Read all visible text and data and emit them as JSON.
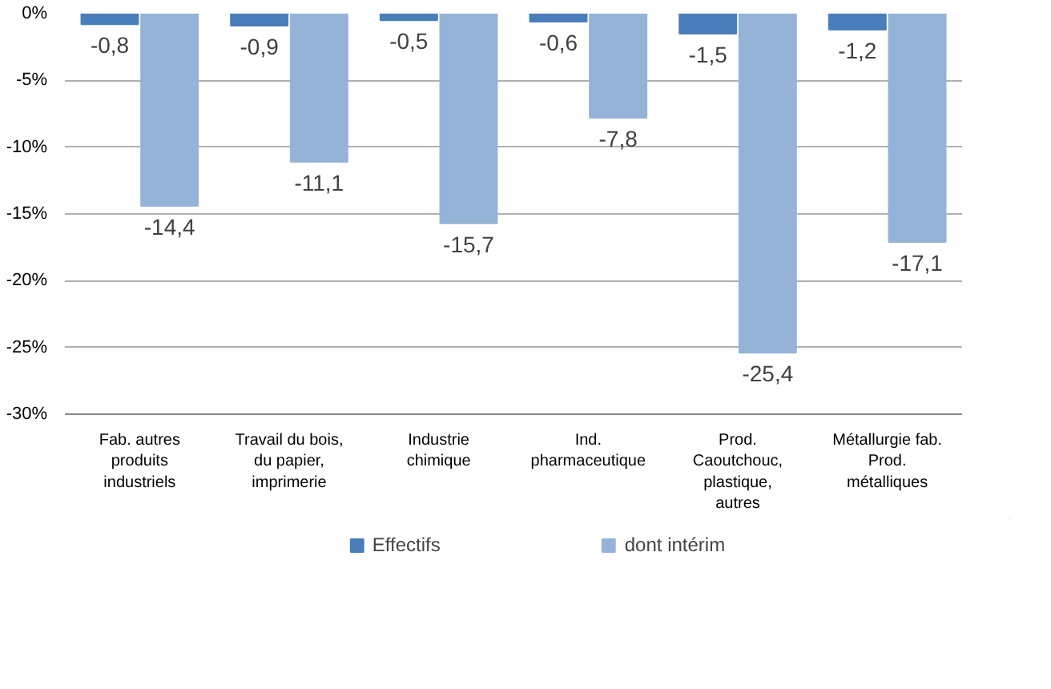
{
  "chart_data": {
    "type": "bar",
    "categories": [
      "Fab. autres produits industriels",
      "Travail du bois, du papier, imprimerie",
      "Industrie chimique",
      "Ind. pharmaceutique",
      "Prod. Caoutchouc, plastique, autres",
      "Métallurgie fab. Prod. métalliques"
    ],
    "series": [
      {
        "name": "Effectifs",
        "color": "#4a7ebb",
        "values": [
          -0.8,
          -0.9,
          -0.5,
          -0.6,
          -1.5,
          -1.2
        ],
        "value_labels": [
          "-0,8",
          "-0,9",
          "-0,5",
          "-0,6",
          "-1,5",
          "-1,2"
        ]
      },
      {
        "name": "dont intérim",
        "color": "#95b3d7",
        "values": [
          -14.4,
          -11.1,
          -15.7,
          -7.8,
          -25.4,
          -17.1
        ],
        "value_labels": [
          "-14,4",
          "-11,1",
          "-15,7",
          "-7,8",
          "-25,4",
          "-17,1"
        ]
      }
    ],
    "ylim": [
      -30,
      0
    ],
    "yticks": [
      {
        "value": 0,
        "label": "0%"
      },
      {
        "value": -5,
        "label": "-5%"
      },
      {
        "value": -10,
        "label": "-10%"
      },
      {
        "value": -15,
        "label": "-15%"
      },
      {
        "value": -20,
        "label": "-20%"
      },
      {
        "value": -25,
        "label": "-25%"
      },
      {
        "value": -30,
        "label": "-30%"
      }
    ],
    "grid": "y",
    "legend": "bottom"
  }
}
